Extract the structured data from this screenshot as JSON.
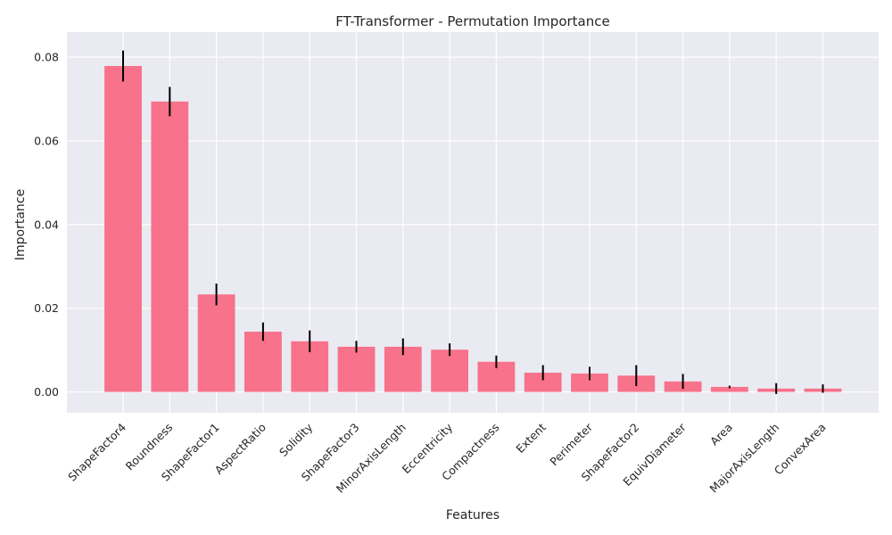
{
  "chart_data": {
    "type": "bar",
    "title": "FT-Transformer - Permutation Importance",
    "xlabel": "Features",
    "ylabel": "Importance",
    "categories": [
      "ShapeFactor4",
      "Roundness",
      "ShapeFactor1",
      "AspectRatio",
      "Solidity",
      "ShapeFactor3",
      "MinorAxisLength",
      "Eccentricity",
      "Compactness",
      "Extent",
      "Perimeter",
      "ShapeFactor2",
      "EquivDiameter",
      "Area",
      "MajorAxisLength",
      "ConvexArea"
    ],
    "values": [
      0.0779,
      0.0694,
      0.0233,
      0.0144,
      0.0121,
      0.0108,
      0.0108,
      0.0101,
      0.0072,
      0.0046,
      0.0044,
      0.0039,
      0.0025,
      0.0012,
      0.0008,
      0.0008
    ],
    "errors": [
      0.0037,
      0.0035,
      0.0026,
      0.0022,
      0.0026,
      0.0014,
      0.002,
      0.0015,
      0.0015,
      0.0018,
      0.0016,
      0.0025,
      0.0018,
      0.0003,
      0.0013,
      0.001
    ],
    "ylim": [
      -0.005,
      0.086
    ],
    "yticks": [
      "0.00",
      "0.02",
      "0.04",
      "0.06",
      "0.08"
    ],
    "ytick_values": [
      0,
      0.02,
      0.04,
      0.06,
      0.08
    ],
    "grid": true,
    "colors": {
      "bar": "#f7728a",
      "error_bar": "#000000",
      "plot_background": "#eaeaf2",
      "grid": "#ffffff",
      "text": "#262626"
    }
  }
}
